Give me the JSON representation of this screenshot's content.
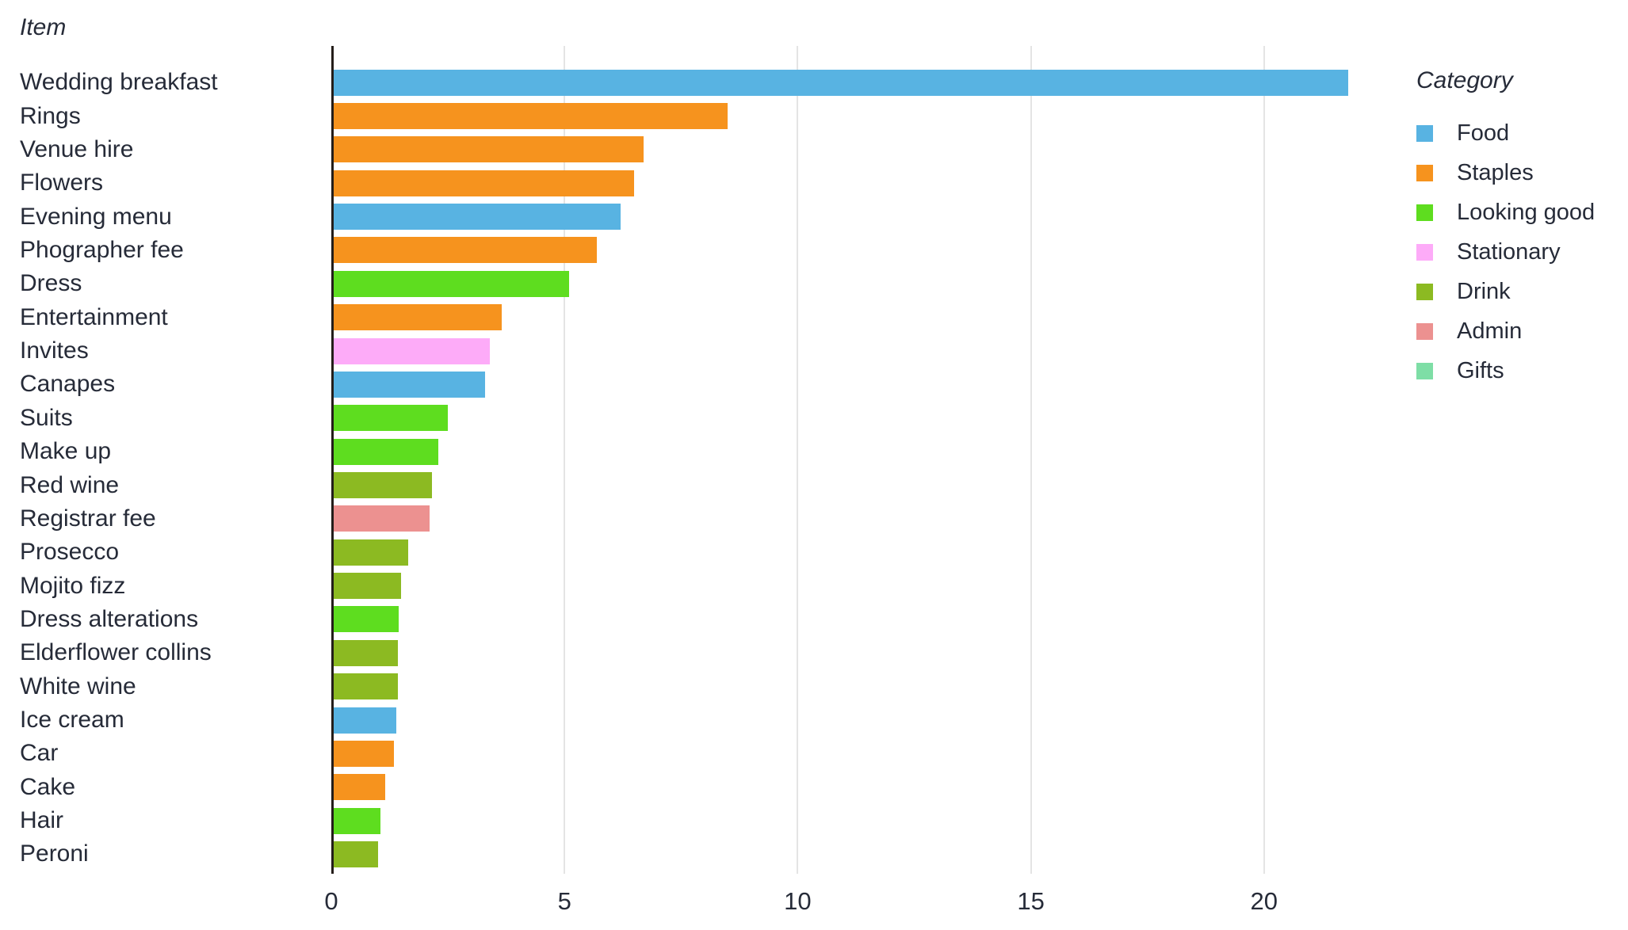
{
  "chart_data": {
    "type": "bar",
    "orientation": "horizontal",
    "y_axis_title": "Item",
    "legend_title": "Category",
    "categories": [
      "Wedding breakfast",
      "Rings",
      "Venue hire",
      "Flowers",
      "Evening menu",
      "Phographer fee",
      "Dress",
      "Entertainment",
      "Invites",
      "Canapes",
      "Suits",
      "Make up",
      "Red wine",
      "Registrar fee",
      "Prosecco",
      "Mojito fizz",
      "Dress alterations",
      "Elderflower collins",
      "White wine",
      "Ice cream",
      "Car",
      "Cake",
      "Hair",
      "Peroni"
    ],
    "values": [
      21.8,
      8.5,
      6.7,
      6.5,
      6.2,
      5.7,
      5.1,
      3.65,
      3.4,
      3.3,
      2.5,
      2.3,
      2.15,
      2.1,
      1.65,
      1.5,
      1.45,
      1.43,
      1.42,
      1.4,
      1.35,
      1.15,
      1.05,
      1.0
    ],
    "item_categories": [
      "Food",
      "Staples",
      "Staples",
      "Staples",
      "Food",
      "Staples",
      "Looking good",
      "Staples",
      "Stationary",
      "Food",
      "Looking good",
      "Looking good",
      "Drink",
      "Admin",
      "Drink",
      "Drink",
      "Looking good",
      "Drink",
      "Drink",
      "Food",
      "Staples",
      "Staples",
      "Looking good",
      "Drink"
    ],
    "legend": [
      {
        "label": "Food",
        "color": "#58b3e2"
      },
      {
        "label": "Staples",
        "color": "#f6931e"
      },
      {
        "label": "Looking good",
        "color": "#5edd1f"
      },
      {
        "label": "Stationary",
        "color": "#fdabf8"
      },
      {
        "label": "Drink",
        "color": "#8cba22"
      },
      {
        "label": "Admin",
        "color": "#ec9190"
      },
      {
        "label": "Gifts",
        "color": "#7edea6"
      }
    ],
    "x_ticks": [
      0,
      5,
      10,
      15,
      20
    ],
    "xlim": [
      0,
      22.1
    ],
    "grid": "vertical gridlines at 5,10,15,20",
    "legend_position": "right",
    "text_color": "#262b38",
    "grid_color": "#e4e4e4",
    "axis_color": "#241e1a",
    "background_color": "#ffffff"
  }
}
